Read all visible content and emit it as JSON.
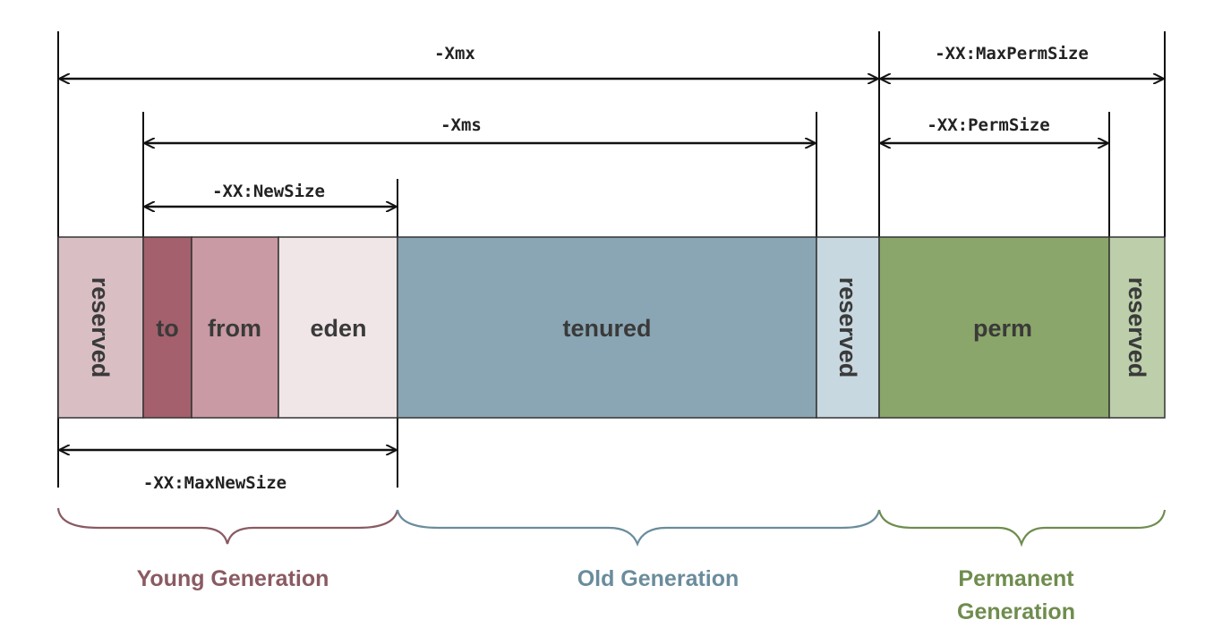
{
  "diagram": {
    "options": {
      "xmx": "-Xmx",
      "max_perm_size": "-XX:MaxPermSize",
      "xms": "-Xms",
      "perm_size": "-XX:PermSize",
      "new_size": "-XX:NewSize",
      "max_new_size": "-XX:MaxNewSize"
    },
    "segments": {
      "young_reserved": "reserved",
      "to": "to",
      "from": "from",
      "eden": "eden",
      "tenured": "tenured",
      "old_reserved": "reserved",
      "perm": "perm",
      "perm_reserved": "reserved"
    },
    "generations": {
      "young": "Young Generation",
      "old": "Old Generation",
      "permanent_line1": "Permanent",
      "permanent_line2": "Generation"
    },
    "colors": {
      "young_reserved": "#d9bfc4",
      "to": "#a4606c",
      "from": "#c99aa3",
      "eden": "#f0e6e8",
      "tenured": "#8aa6b4",
      "old_reserved": "#c8d8e0",
      "perm": "#8ba66a",
      "perm_reserved": "#bccfaa",
      "young_text": "#8a5a63",
      "old_text": "#6a8c9c",
      "perm_text": "#6f8c4e",
      "to_text": "#ffffff"
    }
  }
}
